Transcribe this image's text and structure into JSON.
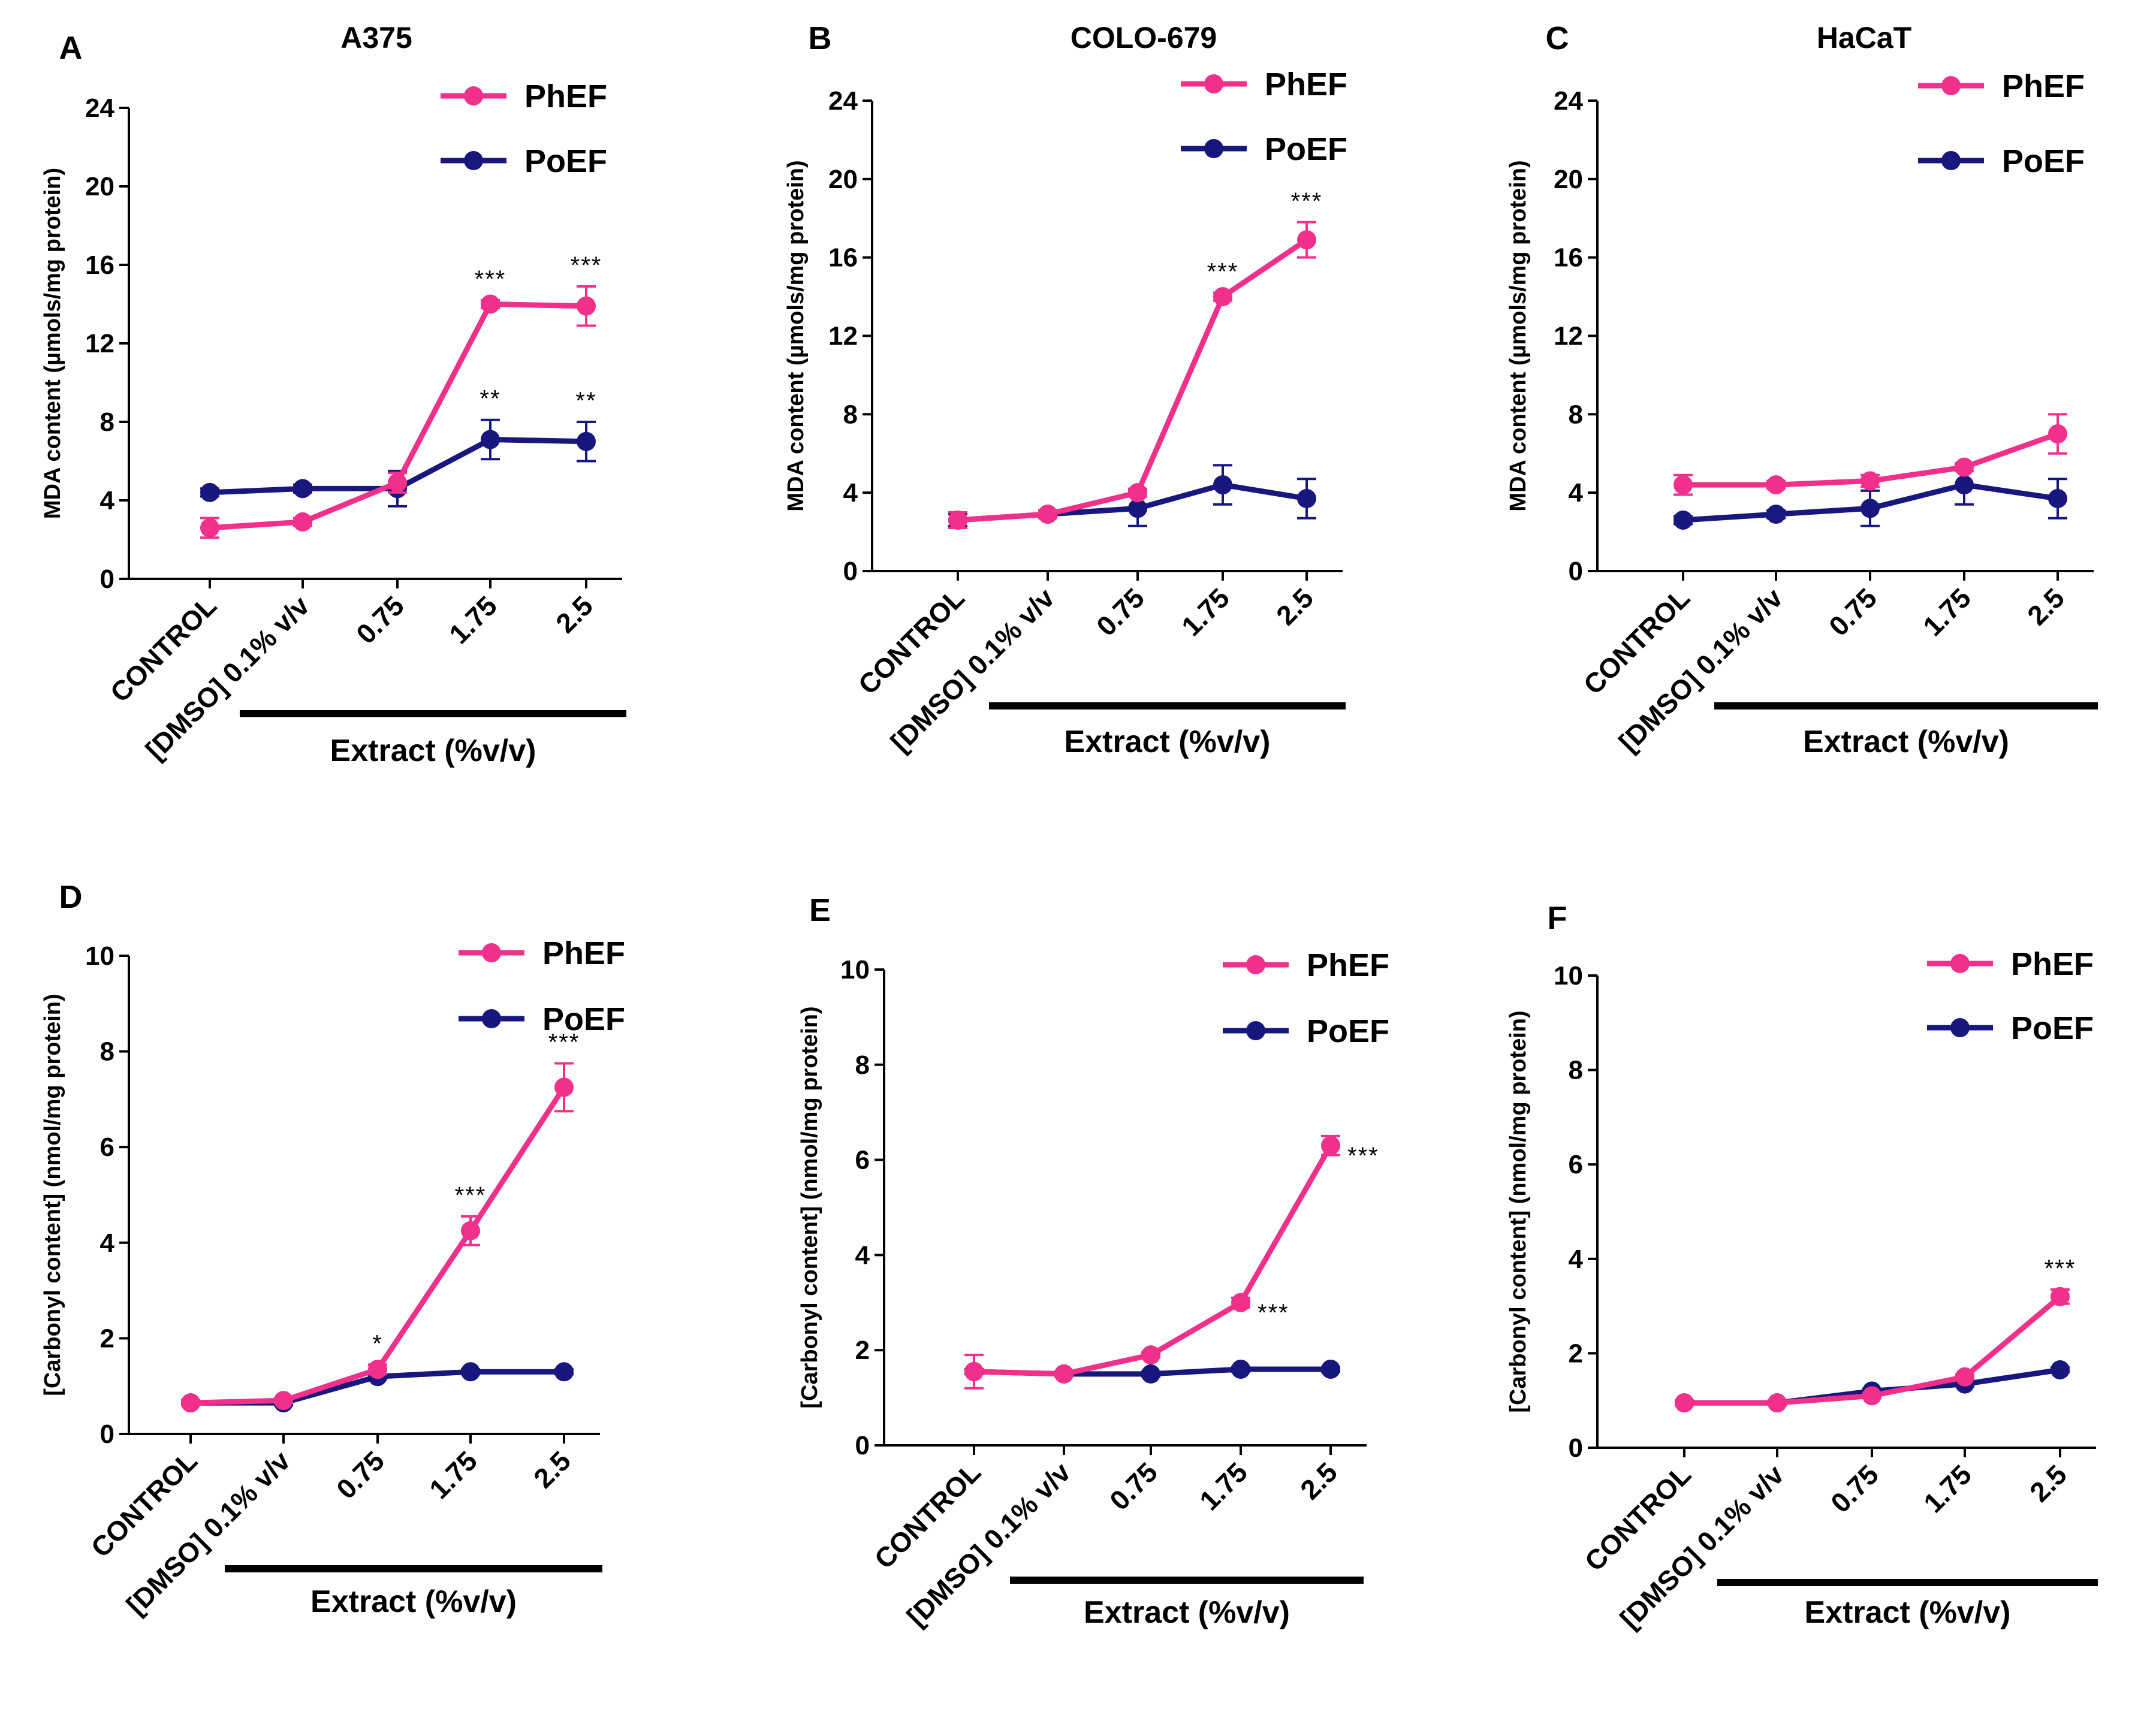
{
  "figure": {
    "series_colors": {
      "PhEF": "#f0308a",
      "PoEF": "#17177e"
    }
  },
  "chart_data": [
    {
      "type": "line",
      "panel": "A",
      "title": "A375",
      "ylabel": "MDA content  (µmols/mg protein)",
      "xlabel": "Extract (%v/v)",
      "categories": [
        "CONTROL",
        "[DMSO] 0.1% v/v",
        "0.75",
        "1.75",
        "2.5"
      ],
      "ylim": [
        0,
        24
      ],
      "yticks": [
        "0",
        "4",
        "8",
        "12",
        "16",
        "20",
        "24"
      ],
      "legend": [
        "PhEF",
        "PoEF"
      ],
      "series": [
        {
          "name": "PhEF",
          "values": [
            2.6,
            2.9,
            4.9,
            14.0,
            13.9
          ],
          "errors": [
            0.5,
            0.2,
            0.5,
            0.2,
            1.0
          ]
        },
        {
          "name": "PoEF",
          "values": [
            4.4,
            4.6,
            4.6,
            7.1,
            7.0
          ],
          "errors": [
            0.2,
            0.2,
            0.9,
            1.0,
            1.0
          ]
        }
      ],
      "annotations": [
        {
          "series": "PhEF",
          "index": 3,
          "text": "***"
        },
        {
          "series": "PhEF",
          "index": 4,
          "text": "***"
        },
        {
          "series": "PoEF",
          "index": 3,
          "text": "**"
        },
        {
          "series": "PoEF",
          "index": 4,
          "text": "**"
        }
      ]
    },
    {
      "type": "line",
      "panel": "B",
      "title": "COLO-679",
      "ylabel": "MDA content  (µmols/mg protein)",
      "xlabel": "Extract (%v/v)",
      "categories": [
        "CONTROL",
        "[DMSO] 0.1% v/v",
        "0.75",
        "1.75",
        "2.5"
      ],
      "ylim": [
        0,
        24
      ],
      "yticks": [
        "0",
        "4",
        "8",
        "12",
        "16",
        "20",
        "24"
      ],
      "legend": [
        "PhEF",
        "PoEF"
      ],
      "series": [
        {
          "name": "PhEF",
          "values": [
            2.6,
            2.9,
            4.0,
            14.0,
            16.9
          ],
          "errors": [
            0.4,
            0.2,
            0.2,
            0.2,
            0.9
          ]
        },
        {
          "name": "PoEF",
          "values": [
            2.6,
            2.9,
            3.2,
            4.4,
            3.7
          ],
          "errors": [
            0.3,
            0.2,
            0.9,
            1.0,
            1.0
          ]
        }
      ],
      "annotations": [
        {
          "series": "PhEF",
          "index": 3,
          "text": "***"
        },
        {
          "series": "PhEF",
          "index": 4,
          "text": "***"
        }
      ]
    },
    {
      "type": "line",
      "panel": "C",
      "title": "HaCaT",
      "ylabel": "MDA content  (µmols/mg protein)",
      "xlabel": "Extract (%v/v)",
      "categories": [
        "CONTROL",
        "[DMSO] 0.1% v/v",
        "0.75",
        "1.75",
        "2.5"
      ],
      "ylim": [
        0,
        24
      ],
      "yticks": [
        "0",
        "4",
        "8",
        "12",
        "16",
        "20",
        "24"
      ],
      "legend": [
        "PhEF",
        "PoEF"
      ],
      "series": [
        {
          "name": "PhEF",
          "values": [
            4.4,
            4.4,
            4.6,
            5.3,
            7.0
          ],
          "errors": [
            0.5,
            0.2,
            0.3,
            0.2,
            1.0
          ]
        },
        {
          "name": "PoEF",
          "values": [
            2.6,
            2.9,
            3.2,
            4.4,
            3.7
          ],
          "errors": [
            0.2,
            0.2,
            0.9,
            1.0,
            1.0
          ]
        }
      ],
      "annotations": []
    },
    {
      "type": "line",
      "panel": "D",
      "title": "",
      "ylabel": "[Carbonyl content] (nmol/mg protein)",
      "xlabel": "Extract (%v/v)",
      "categories": [
        "CONTROL",
        "[DMSO] 0.1% v/v",
        "0.75",
        "1.75",
        "2.5"
      ],
      "ylim": [
        0,
        10
      ],
      "yticks": [
        "0",
        "2",
        "4",
        "6",
        "8",
        "10"
      ],
      "legend": [
        "PhEF",
        "PoEF"
      ],
      "series": [
        {
          "name": "PhEF",
          "values": [
            0.65,
            0.7,
            1.35,
            4.25,
            7.25
          ],
          "errors": [
            0.05,
            0.05,
            0.1,
            0.3,
            0.5
          ]
        },
        {
          "name": "PoEF",
          "values": [
            0.65,
            0.65,
            1.2,
            1.3,
            1.3
          ],
          "errors": [
            0.05,
            0.05,
            0.05,
            0.05,
            0.05
          ]
        }
      ],
      "annotations": [
        {
          "series": "PhEF",
          "index": 2,
          "text": "*"
        },
        {
          "series": "PhEF",
          "index": 3,
          "text": "***"
        },
        {
          "series": "PhEF",
          "index": 4,
          "text": "***"
        }
      ]
    },
    {
      "type": "line",
      "panel": "E",
      "title": "",
      "ylabel": "[Carbonyl content] (nmol/mg protein)",
      "xlabel": "Extract (%v/v)",
      "categories": [
        "CONTROL",
        "[DMSO] 0.1% v/v",
        "0.75",
        "1.75",
        "2.5"
      ],
      "ylim": [
        0,
        10
      ],
      "yticks": [
        "0",
        "2",
        "4",
        "6",
        "8",
        "10"
      ],
      "legend": [
        "PhEF",
        "PoEF"
      ],
      "series": [
        {
          "name": "PhEF",
          "values": [
            1.55,
            1.5,
            1.9,
            3.0,
            6.3
          ],
          "errors": [
            0.35,
            0.05,
            0.05,
            0.1,
            0.2
          ]
        },
        {
          "name": "PoEF",
          "values": [
            1.55,
            1.5,
            1.5,
            1.6,
            1.6
          ],
          "errors": [
            0.05,
            0.05,
            0.05,
            0.05,
            0.05
          ]
        }
      ],
      "annotations": [
        {
          "series": "PhEF",
          "index": 3,
          "text": "***",
          "side": "right"
        },
        {
          "series": "PhEF",
          "index": 4,
          "text": "***",
          "side": "right"
        }
      ]
    },
    {
      "type": "line",
      "panel": "F",
      "title": "",
      "ylabel": "[Carbonyl content] (nmol/mg protein)",
      "xlabel": "Extract (%v/v)",
      "categories": [
        "CONTROL",
        "[DMSO] 0.1% v/v",
        "0.75",
        "1.75",
        "2.5"
      ],
      "ylim": [
        0,
        10
      ],
      "yticks": [
        "0",
        "2",
        "4",
        "6",
        "8",
        "10"
      ],
      "legend": [
        "PhEF",
        "PoEF"
      ],
      "series": [
        {
          "name": "PhEF",
          "values": [
            0.95,
            0.95,
            1.1,
            1.5,
            3.2
          ],
          "errors": [
            0.05,
            0.05,
            0.05,
            0.05,
            0.15
          ]
        },
        {
          "name": "PoEF",
          "values": [
            0.95,
            0.95,
            1.2,
            1.35,
            1.65
          ],
          "errors": [
            0.05,
            0.05,
            0.05,
            0.05,
            0.05
          ]
        }
      ],
      "annotations": [
        {
          "series": "PhEF",
          "index": 4,
          "text": "***"
        }
      ]
    }
  ]
}
